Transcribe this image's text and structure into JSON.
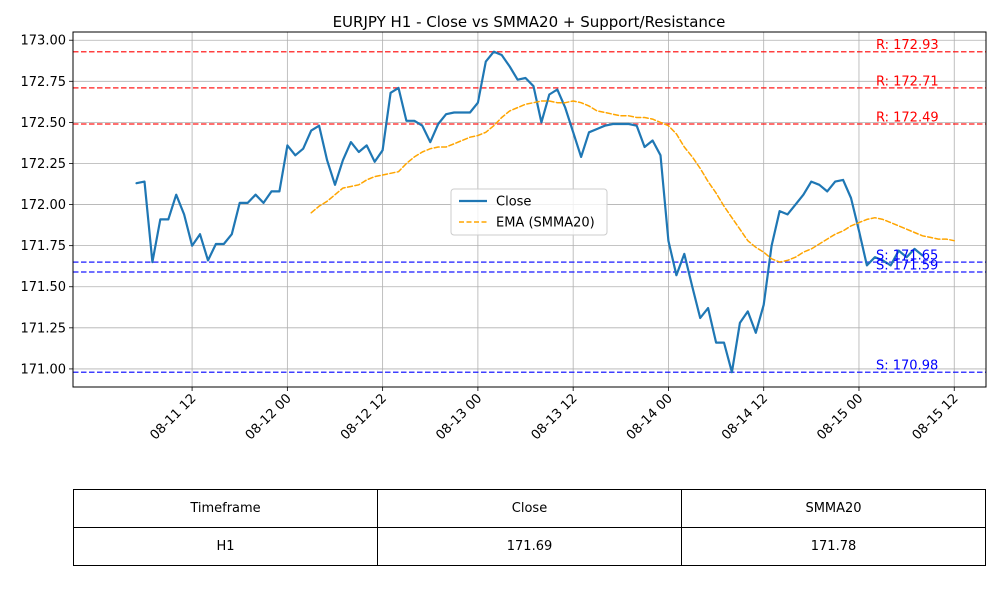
{
  "chart_data": {
    "type": "line",
    "title": "EURJPY H1 - Close vs SMMA20 + Support/Resistance",
    "xlabel": "",
    "ylabel": "",
    "grid": true,
    "legend_position": "center",
    "x_tick_labels": [
      "08-11 12",
      "08-12 00",
      "08-12 12",
      "08-13 00",
      "08-13 12",
      "08-14 00",
      "08-14 12",
      "08-15 00",
      "08-15 12"
    ],
    "x_tick_times": [
      "2025-08-11T12:00",
      "2025-08-12T00:00",
      "2025-08-12T12:00",
      "2025-08-13T00:00",
      "2025-08-13T12:00",
      "2025-08-14T00:00",
      "2025-08-14T12:00",
      "2025-08-15T00:00",
      "2025-08-15T12:00"
    ],
    "xlim": [
      "2025-08-10T21:00",
      "2025-08-15T16:00"
    ],
    "ylim": [
      170.89,
      173.05
    ],
    "y_ticks": [
      171.0,
      171.25,
      171.5,
      171.75,
      172.0,
      172.25,
      172.5,
      172.75,
      173.0
    ],
    "y_tick_labels": [
      "171.00",
      "171.25",
      "171.50",
      "171.75",
      "172.00",
      "172.25",
      "172.50",
      "172.75",
      "173.00"
    ],
    "series": [
      {
        "name": "Close",
        "color": "#1f77b4",
        "style": "solid",
        "x_start": "2025-08-11T05:00",
        "x_step_hours": 1,
        "values": [
          172.13,
          172.14,
          171.65,
          171.91,
          171.91,
          172.06,
          171.94,
          171.75,
          171.82,
          171.66,
          171.76,
          171.76,
          171.82,
          172.01,
          172.01,
          172.06,
          172.01,
          172.08,
          172.08,
          172.36,
          172.3,
          172.34,
          172.45,
          172.48,
          172.27,
          172.12,
          172.27,
          172.38,
          172.32,
          172.36,
          172.26,
          172.33,
          172.68,
          172.71,
          172.51,
          172.51,
          172.48,
          172.38,
          172.49,
          172.55,
          172.56,
          172.56,
          172.56,
          172.62,
          172.87,
          172.93,
          172.91,
          172.84,
          172.76,
          172.77,
          172.72,
          172.5,
          172.67,
          172.7,
          172.59,
          172.44,
          172.29,
          172.44,
          172.46,
          172.48,
          172.49,
          172.49,
          172.49,
          172.48,
          172.35,
          172.39,
          172.3,
          171.78,
          171.57,
          171.7,
          171.5,
          171.31,
          171.37,
          171.16,
          171.16,
          170.98,
          171.28,
          171.35,
          171.22,
          171.39,
          171.75,
          171.96,
          171.94,
          172.0,
          172.06,
          172.14,
          172.12,
          172.08,
          172.14,
          172.15,
          172.04,
          171.84,
          171.63,
          171.68,
          171.66,
          171.63,
          171.72,
          171.68,
          171.73,
          171.69
        ]
      },
      {
        "name": "EMA (SMMA20)",
        "color": "#ffa500",
        "style": "dashed",
        "x_start": "2025-08-12T03:00",
        "x_step_hours": 1,
        "values": [
          171.95,
          171.99,
          172.02,
          172.06,
          172.1,
          172.11,
          172.12,
          172.15,
          172.17,
          172.18,
          172.19,
          172.2,
          172.25,
          172.29,
          172.32,
          172.34,
          172.35,
          172.35,
          172.37,
          172.39,
          172.41,
          172.42,
          172.44,
          172.48,
          172.53,
          172.57,
          172.59,
          172.61,
          172.62,
          172.63,
          172.63,
          172.62,
          172.62,
          172.63,
          172.62,
          172.6,
          172.57,
          172.56,
          172.55,
          172.54,
          172.54,
          172.53,
          172.53,
          172.52,
          172.5,
          172.48,
          172.43,
          172.35,
          172.29,
          172.22,
          172.14,
          172.07,
          171.99,
          171.92,
          171.85,
          171.78,
          171.74,
          171.71,
          171.67,
          171.65,
          171.66,
          171.68,
          171.71,
          171.73,
          171.76,
          171.79,
          171.82,
          171.84,
          171.87,
          171.89,
          171.91,
          171.92,
          171.91,
          171.89,
          171.87,
          171.85,
          171.83,
          171.81,
          171.8,
          171.79,
          171.79,
          171.78
        ]
      }
    ],
    "resistance_levels": [
      172.93,
      172.71,
      172.49
    ],
    "support_levels": [
      171.65,
      171.59,
      170.98
    ],
    "resistance_labels": [
      "R: 172.93",
      "R: 172.71",
      "R: 172.49"
    ],
    "support_labels": [
      "S: 171.65",
      "S: 171.59",
      "S: 170.98"
    ],
    "resistance_color": "#ff0000",
    "support_color": "#0000ff"
  },
  "table": {
    "headers": [
      "Timeframe",
      "Close",
      "SMMA20"
    ],
    "row": [
      "H1",
      "171.69",
      "171.78"
    ]
  }
}
